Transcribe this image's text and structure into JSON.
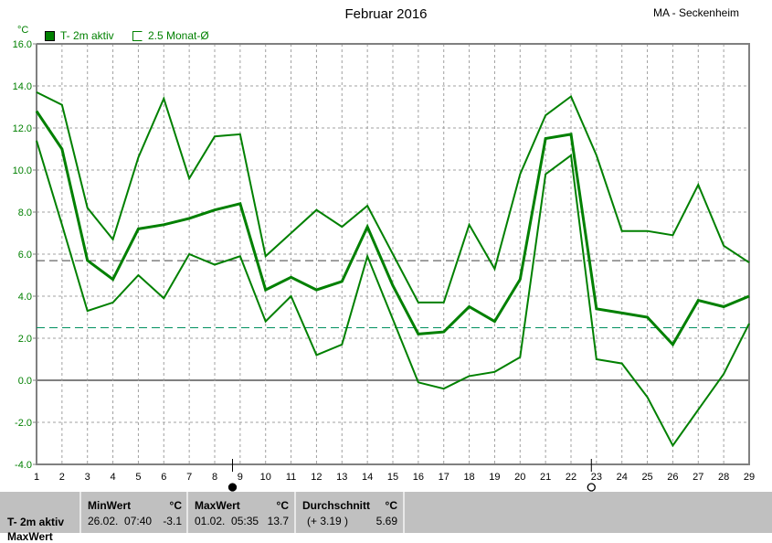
{
  "header": {
    "title": "Februar 2016",
    "station": "MA - Seckenheim",
    "unit": "°C"
  },
  "legend": [
    {
      "label": "T- 2m aktiv",
      "color": "#008000",
      "filled": true
    },
    {
      "label": "2.5 Monat-Ø",
      "color": "#008000",
      "filled": false
    }
  ],
  "chart_data": {
    "type": "line",
    "title": "Februar 2016",
    "ylabel": "°C",
    "ylim": [
      -4,
      16
    ],
    "yticks": [
      "16.0",
      "14.0",
      "12.0",
      "10.0",
      "8.0",
      "6.0",
      "4.0",
      "2.0",
      "0.0",
      "-2.0",
      "-4.0"
    ],
    "x": [
      1,
      2,
      3,
      4,
      5,
      6,
      7,
      8,
      9,
      10,
      11,
      12,
      13,
      14,
      15,
      16,
      17,
      18,
      19,
      20,
      21,
      22,
      23,
      24,
      25,
      26,
      27,
      28,
      29
    ],
    "grid": true,
    "series": [
      {
        "role": "daily max",
        "color": "#008000",
        "values": [
          13.7,
          13.1,
          8.2,
          6.7,
          10.6,
          13.4,
          9.6,
          11.6,
          11.7,
          5.9,
          7.0,
          8.1,
          7.3,
          8.3,
          6.0,
          3.7,
          3.7,
          7.4,
          5.3,
          9.8,
          12.6,
          13.5,
          10.7,
          7.1,
          7.1,
          6.9,
          9.3,
          6.4,
          5.6
        ]
      },
      {
        "role": "daily mean",
        "color": "#008000",
        "values": [
          12.8,
          11.0,
          5.7,
          4.8,
          7.2,
          7.4,
          7.7,
          8.1,
          8.4,
          4.3,
          4.9,
          4.3,
          4.7,
          7.3,
          4.5,
          2.2,
          2.3,
          3.5,
          2.8,
          4.8,
          11.5,
          11.7,
          3.4,
          3.2,
          3.0,
          1.7,
          3.8,
          3.5,
          4.0
        ]
      },
      {
        "role": "daily min",
        "color": "#008000",
        "values": [
          11.4,
          7.4,
          3.3,
          3.7,
          5.0,
          3.9,
          6.0,
          5.5,
          5.9,
          2.8,
          4.0,
          1.2,
          1.7,
          5.9,
          2.9,
          -0.1,
          -0.4,
          0.2,
          0.4,
          1.1,
          9.8,
          10.7,
          1.0,
          0.8,
          -0.8,
          -3.1,
          -1.4,
          0.3,
          2.7
        ]
      }
    ],
    "reference_lines": [
      {
        "value": 5.69,
        "color": "#404040",
        "meaning": "Durchschnitt"
      },
      {
        "value": 2.5,
        "color": "#009060",
        "meaning": "2.5 Monat-Ø"
      }
    ],
    "moon_phases": [
      {
        "day": 8.7,
        "phase": "full-moon"
      },
      {
        "day": 22.8,
        "phase": "new-moon"
      }
    ]
  },
  "stats": {
    "row_label": "T- 2m aktiv",
    "row_label2": "MaxWert",
    "min": {
      "header": "MinWert",
      "unit": "°C",
      "date": "26.02.  07:40",
      "value": "-3.1"
    },
    "max": {
      "header": "MaxWert",
      "unit": "°C",
      "date": "01.02.  05:35",
      "value": "13.7"
    },
    "avg": {
      "header": "Durchschnitt",
      "unit": "°C",
      "delta": "(+ 3.19 )",
      "value": "5.69"
    }
  }
}
